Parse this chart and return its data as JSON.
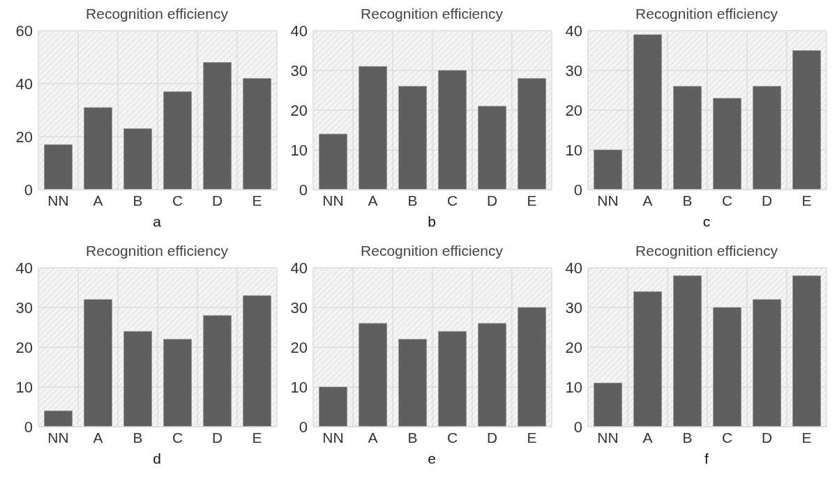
{
  "chart_data": [
    {
      "type": "bar",
      "title": "Recognition efficiency",
      "xlabel": "a",
      "categories": [
        "NN",
        "A",
        "B",
        "C",
        "D",
        "E"
      ],
      "values": [
        17,
        31,
        23,
        37,
        48,
        42
      ],
      "color": "#5f5f5f",
      "ylim": [
        0,
        60
      ],
      "yticks": [
        0,
        20,
        40,
        60
      ],
      "grid": true
    },
    {
      "type": "bar",
      "title": "Recognition efficiency",
      "xlabel": "b",
      "categories": [
        "NN",
        "A",
        "B",
        "C",
        "D",
        "E"
      ],
      "values": [
        14,
        31,
        26,
        30,
        21,
        28
      ],
      "color": "#5f5f5f",
      "ylim": [
        0,
        40
      ],
      "yticks": [
        0,
        10,
        20,
        30,
        40
      ],
      "grid": true
    },
    {
      "type": "bar",
      "title": "Recognition efficiency",
      "xlabel": "c",
      "categories": [
        "NN",
        "A",
        "B",
        "C",
        "D",
        "E"
      ],
      "values": [
        10,
        39,
        26,
        23,
        26,
        35
      ],
      "color": "#5f5f5f",
      "ylim": [
        0,
        40
      ],
      "yticks": [
        0,
        10,
        20,
        30,
        40
      ],
      "grid": true
    },
    {
      "type": "bar",
      "title": "Recognition efficiency",
      "xlabel": "d",
      "categories": [
        "NN",
        "A",
        "B",
        "C",
        "D",
        "E"
      ],
      "values": [
        4,
        32,
        24,
        22,
        28,
        33
      ],
      "color": "#5f5f5f",
      "ylim": [
        0,
        40
      ],
      "yticks": [
        0,
        10,
        20,
        30,
        40
      ],
      "grid": true
    },
    {
      "type": "bar",
      "title": "Recognition efficiency",
      "xlabel": "e",
      "categories": [
        "NN",
        "A",
        "B",
        "C",
        "D",
        "E"
      ],
      "values": [
        10,
        26,
        22,
        24,
        26,
        30
      ],
      "color": "#5f5f5f",
      "ylim": [
        0,
        40
      ],
      "yticks": [
        0,
        10,
        20,
        30,
        40
      ],
      "grid": true
    },
    {
      "type": "bar",
      "title": "Recognition efficiency",
      "xlabel": "f",
      "categories": [
        "NN",
        "A",
        "B",
        "C",
        "D",
        "E"
      ],
      "values": [
        11,
        34,
        38,
        30,
        32,
        38
      ],
      "color": "#5f5f5f",
      "ylim": [
        0,
        40
      ],
      "yticks": [
        0,
        10,
        20,
        30,
        40
      ],
      "grid": true
    }
  ]
}
